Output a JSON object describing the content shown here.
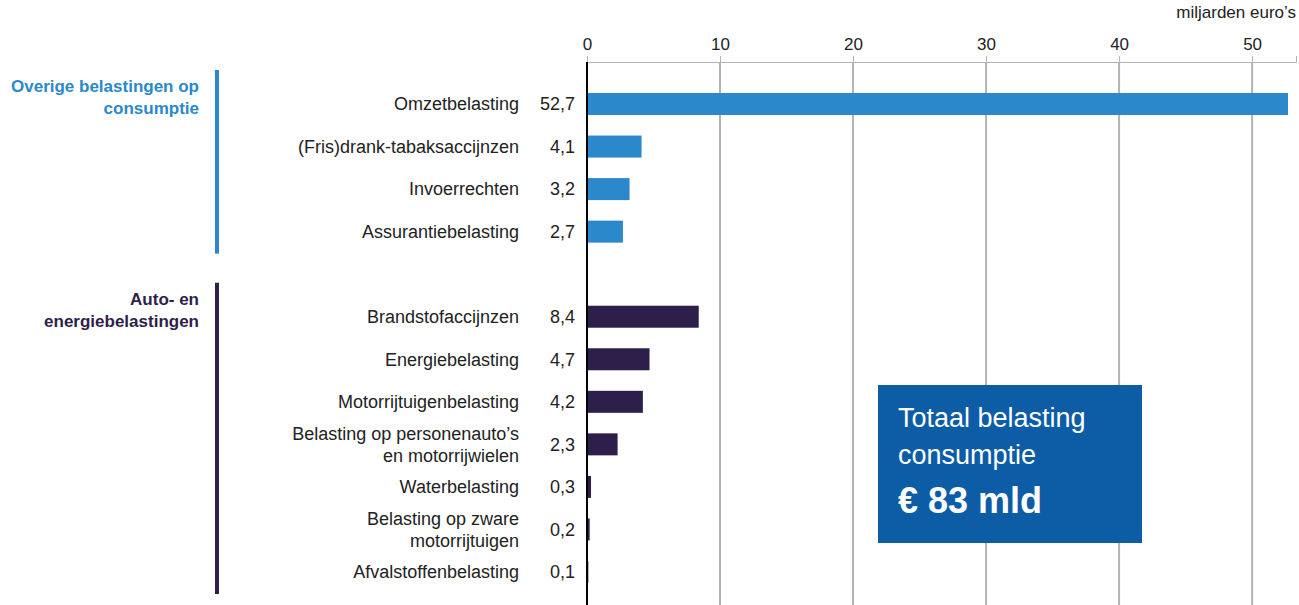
{
  "chart_data": {
    "type": "bar",
    "orientation": "horizontal",
    "x_label": "miljarden euro’s",
    "categories": [
      "Omzetbelasting",
      "(Fris)drank-tabaksaccijnzen",
      "Invoerrechten",
      "Assurantiebelasting",
      "Brandstofaccijnzen",
      "Energiebelasting",
      "Motorrijtuigenbelasting",
      "Belasting op personenauto’s en motorrijwielen",
      "Waterbelasting",
      "Belasting op zware motorrijtuigen",
      "Afvalstoffenbelasting"
    ],
    "series": [
      {
        "name": "Overige belastingen op consumptie",
        "color": "#2a88cb",
        "values": [
          52.7,
          4.1,
          3.2,
          2.7,
          null,
          null,
          null,
          null,
          null,
          null,
          null
        ],
        "value_labels": [
          "52,7",
          "4,1",
          "3,2",
          "2,7",
          null,
          null,
          null,
          null,
          null,
          null,
          null
        ]
      },
      {
        "name": "Auto- en energiebelastingen",
        "color": "#2e1f4a",
        "values": [
          null,
          null,
          null,
          null,
          8.4,
          4.7,
          4.2,
          2.3,
          0.3,
          0.2,
          0.1
        ],
        "value_labels": [
          null,
          null,
          null,
          null,
          "8,4",
          "4,7",
          "4,2",
          "2,3",
          "0,3",
          "0,2",
          "0,1"
        ]
      }
    ],
    "xlim": [
      0,
      53.3
    ],
    "xticks": [
      0,
      10,
      20,
      30,
      40,
      50
    ],
    "grid": true,
    "data_labels": true,
    "annotations": [
      {
        "title": "Totaal belasting consumptie",
        "text": "€ 83 mld"
      }
    ]
  }
}
